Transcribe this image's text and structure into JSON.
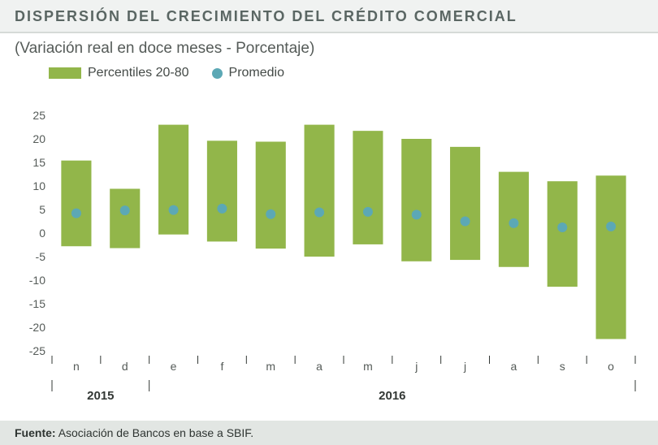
{
  "title": "DISPERSIÓN DEL CRECIMIENTO DEL CRÉDITO COMERCIAL",
  "subtitle": "(Variación real en doce meses - Porcentaje)",
  "legend": {
    "bar_label": "Percentiles 20-80",
    "dot_label": "Promedio"
  },
  "footer": {
    "label": "Fuente:",
    "text": "Asociación de Bancos en base a SBIF."
  },
  "chart": {
    "type": "range-bar-with-marker",
    "ylim": [
      -25,
      25
    ],
    "ytick_step": 5,
    "background_color": "#ffffff",
    "bar_color": "#92b64a",
    "marker_color": "#5ca8b5",
    "axis_text_color": "#555b58",
    "tick_color": "#333835",
    "bar_width_ratio": 0.62,
    "axis_fontsize": 14,
    "year_fontsize": 15,
    "marker_radius": 6,
    "years": [
      {
        "label": "2015",
        "span": [
          0,
          2
        ]
      },
      {
        "label": "2016",
        "span": [
          2,
          12
        ]
      }
    ],
    "months": [
      "n",
      "d",
      "e",
      "f",
      "m",
      "a",
      "m",
      "j",
      "j",
      "a",
      "s",
      "o"
    ],
    "series": [
      {
        "low": -2.8,
        "high": 15.4,
        "avg": 4.2
      },
      {
        "low": -3.2,
        "high": 9.4,
        "avg": 4.8
      },
      {
        "low": -0.3,
        "high": 23.0,
        "avg": 4.9
      },
      {
        "low": -1.8,
        "high": 19.6,
        "avg": 5.2
      },
      {
        "low": -3.3,
        "high": 19.4,
        "avg": 4.0
      },
      {
        "low": -5.0,
        "high": 23.0,
        "avg": 4.4
      },
      {
        "low": -2.4,
        "high": 21.7,
        "avg": 4.5
      },
      {
        "low": -6.0,
        "high": 20.0,
        "avg": 3.9
      },
      {
        "low": -5.7,
        "high": 18.3,
        "avg": 2.5
      },
      {
        "low": -7.2,
        "high": 13.0,
        "avg": 2.1
      },
      {
        "low": -11.4,
        "high": 11.0,
        "avg": 1.2
      },
      {
        "low": -22.5,
        "high": 12.2,
        "avg": 1.4
      }
    ]
  }
}
